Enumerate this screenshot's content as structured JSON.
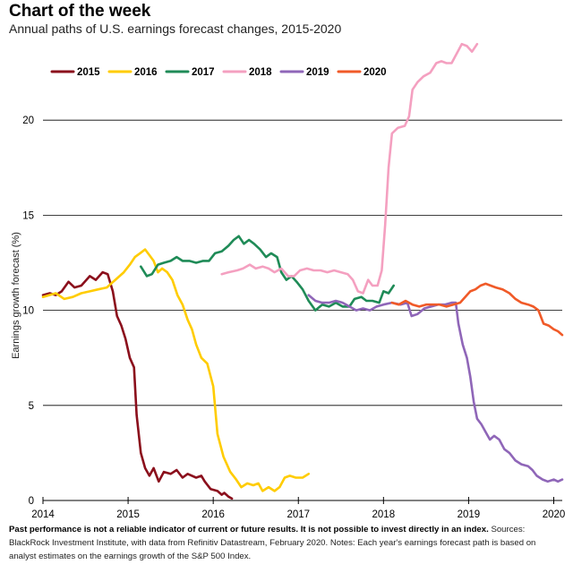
{
  "header": {
    "title": "Chart of the week",
    "subtitle": "Annual paths of U.S. earnings forecast changes, 2015-2020"
  },
  "footnote": {
    "bold": "Past performance is not a reliable indicator of current or future results. It is not possible to invest directly in an index.",
    "text": " Sources: BlackRock Investment Institute, with data from Refinitiv Datastream, February 2020. Notes: Each year's earnings forecast path is based on analyst estimates on the earnings growth of the S&P 500 Index."
  },
  "chart_data": {
    "type": "line",
    "title": "",
    "xlabel": "",
    "ylabel": "Earnings growth forecast (%)",
    "xlim": [
      2014.0,
      2020.1
    ],
    "ylim": [
      0,
      25
    ],
    "yticks": [
      0,
      5,
      10,
      15,
      20
    ],
    "xticks": [
      2014,
      2015,
      2016,
      2017,
      2018,
      2019,
      2020
    ],
    "ytick_labels": [
      "0",
      "5",
      "10",
      "15",
      "20"
    ],
    "xtick_labels": [
      "2014",
      "2015",
      "2016",
      "2017",
      "2018",
      "2019",
      "2020"
    ],
    "grid": "horizontal",
    "legend_position": "top-left",
    "series": [
      {
        "name": "2015",
        "color": "#8b0f1c",
        "points": [
          [
            2014.0,
            10.8
          ],
          [
            2014.08,
            10.9
          ],
          [
            2014.15,
            10.8
          ],
          [
            2014.22,
            11.0
          ],
          [
            2014.3,
            11.5
          ],
          [
            2014.37,
            11.2
          ],
          [
            2014.45,
            11.3
          ],
          [
            2014.55,
            11.8
          ],
          [
            2014.62,
            11.6
          ],
          [
            2014.7,
            12.0
          ],
          [
            2014.76,
            11.9
          ],
          [
            2014.82,
            11.0
          ],
          [
            2014.87,
            9.7
          ],
          [
            2014.92,
            9.2
          ],
          [
            2014.97,
            8.5
          ],
          [
            2015.02,
            7.5
          ],
          [
            2015.07,
            7.0
          ],
          [
            2015.1,
            4.5
          ],
          [
            2015.15,
            2.5
          ],
          [
            2015.2,
            1.7
          ],
          [
            2015.25,
            1.3
          ],
          [
            2015.3,
            1.7
          ],
          [
            2015.36,
            1.0
          ],
          [
            2015.42,
            1.5
          ],
          [
            2015.5,
            1.4
          ],
          [
            2015.57,
            1.6
          ],
          [
            2015.64,
            1.2
          ],
          [
            2015.7,
            1.4
          ],
          [
            2015.8,
            1.2
          ],
          [
            2015.86,
            1.3
          ],
          [
            2015.9,
            1.0
          ],
          [
            2015.97,
            0.6
          ],
          [
            2016.05,
            0.5
          ],
          [
            2016.1,
            0.3
          ],
          [
            2016.13,
            0.4
          ],
          [
            2016.18,
            0.2
          ],
          [
            2016.22,
            0.1
          ]
        ]
      },
      {
        "name": "2016",
        "color": "#ffcc00",
        "points": [
          [
            2014.0,
            10.7
          ],
          [
            2014.15,
            10.9
          ],
          [
            2014.25,
            10.6
          ],
          [
            2014.35,
            10.7
          ],
          [
            2014.45,
            10.9
          ],
          [
            2014.55,
            11.0
          ],
          [
            2014.65,
            11.1
          ],
          [
            2014.75,
            11.2
          ],
          [
            2014.85,
            11.6
          ],
          [
            2014.95,
            12.0
          ],
          [
            2015.02,
            12.4
          ],
          [
            2015.08,
            12.8
          ],
          [
            2015.14,
            13.0
          ],
          [
            2015.2,
            13.2
          ],
          [
            2015.25,
            12.9
          ],
          [
            2015.3,
            12.6
          ],
          [
            2015.35,
            12.0
          ],
          [
            2015.4,
            12.2
          ],
          [
            2015.46,
            12.0
          ],
          [
            2015.52,
            11.6
          ],
          [
            2015.58,
            10.8
          ],
          [
            2015.64,
            10.3
          ],
          [
            2015.7,
            9.5
          ],
          [
            2015.75,
            9.0
          ],
          [
            2015.8,
            8.2
          ],
          [
            2015.86,
            7.5
          ],
          [
            2015.93,
            7.2
          ],
          [
            2016.0,
            6.0
          ],
          [
            2016.05,
            3.5
          ],
          [
            2016.12,
            2.3
          ],
          [
            2016.2,
            1.5
          ],
          [
            2016.27,
            1.1
          ],
          [
            2016.33,
            0.7
          ],
          [
            2016.4,
            0.9
          ],
          [
            2016.47,
            0.8
          ],
          [
            2016.53,
            0.9
          ],
          [
            2016.58,
            0.5
          ],
          [
            2016.65,
            0.7
          ],
          [
            2016.72,
            0.5
          ],
          [
            2016.78,
            0.7
          ],
          [
            2016.84,
            1.2
          ],
          [
            2016.9,
            1.3
          ],
          [
            2016.97,
            1.2
          ],
          [
            2017.05,
            1.2
          ],
          [
            2017.12,
            1.4
          ]
        ]
      },
      {
        "name": "2017",
        "color": "#1f8b57",
        "points": [
          [
            2015.15,
            12.3
          ],
          [
            2015.22,
            11.8
          ],
          [
            2015.28,
            11.9
          ],
          [
            2015.35,
            12.4
          ],
          [
            2015.42,
            12.5
          ],
          [
            2015.5,
            12.6
          ],
          [
            2015.57,
            12.8
          ],
          [
            2015.64,
            12.6
          ],
          [
            2015.72,
            12.6
          ],
          [
            2015.8,
            12.5
          ],
          [
            2015.88,
            12.6
          ],
          [
            2015.95,
            12.6
          ],
          [
            2016.02,
            13.0
          ],
          [
            2016.1,
            13.1
          ],
          [
            2016.18,
            13.4
          ],
          [
            2016.24,
            13.7
          ],
          [
            2016.3,
            13.9
          ],
          [
            2016.36,
            13.5
          ],
          [
            2016.42,
            13.7
          ],
          [
            2016.48,
            13.5
          ],
          [
            2016.55,
            13.2
          ],
          [
            2016.62,
            12.8
          ],
          [
            2016.68,
            13.0
          ],
          [
            2016.75,
            12.8
          ],
          [
            2016.8,
            12.0
          ],
          [
            2016.86,
            11.6
          ],
          [
            2016.92,
            11.8
          ],
          [
            2016.98,
            11.5
          ],
          [
            2017.05,
            11.1
          ],
          [
            2017.12,
            10.5
          ],
          [
            2017.2,
            10.0
          ],
          [
            2017.28,
            10.3
          ],
          [
            2017.36,
            10.2
          ],
          [
            2017.44,
            10.4
          ],
          [
            2017.52,
            10.2
          ],
          [
            2017.6,
            10.2
          ],
          [
            2017.66,
            10.6
          ],
          [
            2017.74,
            10.7
          ],
          [
            2017.8,
            10.5
          ],
          [
            2017.87,
            10.5
          ],
          [
            2017.95,
            10.4
          ],
          [
            2018.0,
            11.0
          ],
          [
            2018.06,
            10.9
          ],
          [
            2018.12,
            11.3
          ]
        ]
      },
      {
        "name": "2018",
        "color": "#f4a0c0",
        "points": [
          [
            2016.1,
            11.9
          ],
          [
            2016.18,
            12.0
          ],
          [
            2016.28,
            12.1
          ],
          [
            2016.35,
            12.2
          ],
          [
            2016.43,
            12.4
          ],
          [
            2016.5,
            12.2
          ],
          [
            2016.58,
            12.3
          ],
          [
            2016.65,
            12.2
          ],
          [
            2016.72,
            12.0
          ],
          [
            2016.8,
            12.2
          ],
          [
            2016.88,
            11.8
          ],
          [
            2016.95,
            11.8
          ],
          [
            2017.02,
            12.1
          ],
          [
            2017.1,
            12.2
          ],
          [
            2017.18,
            12.1
          ],
          [
            2017.26,
            12.1
          ],
          [
            2017.34,
            12.0
          ],
          [
            2017.42,
            12.1
          ],
          [
            2017.5,
            12.0
          ],
          [
            2017.58,
            11.9
          ],
          [
            2017.64,
            11.6
          ],
          [
            2017.7,
            11.0
          ],
          [
            2017.76,
            10.9
          ],
          [
            2017.82,
            11.6
          ],
          [
            2017.87,
            11.3
          ],
          [
            2017.93,
            11.3
          ],
          [
            2017.98,
            12.1
          ],
          [
            2018.02,
            14.5
          ],
          [
            2018.06,
            17.5
          ],
          [
            2018.1,
            19.3
          ],
          [
            2018.17,
            19.6
          ],
          [
            2018.25,
            19.7
          ],
          [
            2018.3,
            20.2
          ],
          [
            2018.34,
            21.6
          ],
          [
            2018.4,
            22.0
          ],
          [
            2018.47,
            22.3
          ],
          [
            2018.55,
            22.5
          ],
          [
            2018.62,
            23.0
          ],
          [
            2018.68,
            23.1
          ],
          [
            2018.74,
            23.0
          ],
          [
            2018.8,
            23.0
          ],
          [
            2018.86,
            23.5
          ],
          [
            2018.92,
            24.0
          ],
          [
            2018.98,
            23.9
          ],
          [
            2019.04,
            23.6
          ],
          [
            2019.1,
            24.0
          ]
        ]
      },
      {
        "name": "2019",
        "color": "#8f66b8",
        "points": [
          [
            2017.12,
            10.8
          ],
          [
            2017.2,
            10.5
          ],
          [
            2017.28,
            10.4
          ],
          [
            2017.36,
            10.4
          ],
          [
            2017.44,
            10.5
          ],
          [
            2017.52,
            10.4
          ],
          [
            2017.6,
            10.2
          ],
          [
            2017.68,
            10.0
          ],
          [
            2017.76,
            10.1
          ],
          [
            2017.84,
            10.0
          ],
          [
            2017.92,
            10.2
          ],
          [
            2018.0,
            10.3
          ],
          [
            2018.1,
            10.4
          ],
          [
            2018.2,
            10.3
          ],
          [
            2018.28,
            10.4
          ],
          [
            2018.33,
            9.7
          ],
          [
            2018.4,
            9.8
          ],
          [
            2018.48,
            10.1
          ],
          [
            2018.56,
            10.2
          ],
          [
            2018.64,
            10.3
          ],
          [
            2018.72,
            10.3
          ],
          [
            2018.8,
            10.4
          ],
          [
            2018.85,
            10.4
          ],
          [
            2018.88,
            9.3
          ],
          [
            2018.93,
            8.2
          ],
          [
            2018.98,
            7.5
          ],
          [
            2019.02,
            6.5
          ],
          [
            2019.06,
            5.2
          ],
          [
            2019.1,
            4.3
          ],
          [
            2019.15,
            4.0
          ],
          [
            2019.2,
            3.6
          ],
          [
            2019.25,
            3.2
          ],
          [
            2019.3,
            3.4
          ],
          [
            2019.36,
            3.2
          ],
          [
            2019.42,
            2.7
          ],
          [
            2019.48,
            2.5
          ],
          [
            2019.55,
            2.1
          ],
          [
            2019.62,
            1.9
          ],
          [
            2019.7,
            1.8
          ],
          [
            2019.75,
            1.6
          ],
          [
            2019.8,
            1.3
          ],
          [
            2019.87,
            1.1
          ],
          [
            2019.93,
            1.0
          ],
          [
            2020.0,
            1.1
          ],
          [
            2020.05,
            1.0
          ],
          [
            2020.1,
            1.1
          ]
        ]
      },
      {
        "name": "2020",
        "color": "#f05a28",
        "points": [
          [
            2018.1,
            10.4
          ],
          [
            2018.18,
            10.3
          ],
          [
            2018.26,
            10.5
          ],
          [
            2018.34,
            10.3
          ],
          [
            2018.42,
            10.2
          ],
          [
            2018.5,
            10.3
          ],
          [
            2018.58,
            10.3
          ],
          [
            2018.66,
            10.3
          ],
          [
            2018.74,
            10.2
          ],
          [
            2018.82,
            10.3
          ],
          [
            2018.9,
            10.4
          ],
          [
            2018.96,
            10.7
          ],
          [
            2019.02,
            11.0
          ],
          [
            2019.08,
            11.1
          ],
          [
            2019.14,
            11.3
          ],
          [
            2019.2,
            11.4
          ],
          [
            2019.26,
            11.3
          ],
          [
            2019.32,
            11.2
          ],
          [
            2019.4,
            11.1
          ],
          [
            2019.48,
            10.9
          ],
          [
            2019.55,
            10.6
          ],
          [
            2019.62,
            10.4
          ],
          [
            2019.7,
            10.3
          ],
          [
            2019.76,
            10.2
          ],
          [
            2019.82,
            10.0
          ],
          [
            2019.88,
            9.3
          ],
          [
            2019.94,
            9.2
          ],
          [
            2020.0,
            9.0
          ],
          [
            2020.05,
            8.9
          ],
          [
            2020.1,
            8.7
          ]
        ]
      }
    ]
  }
}
